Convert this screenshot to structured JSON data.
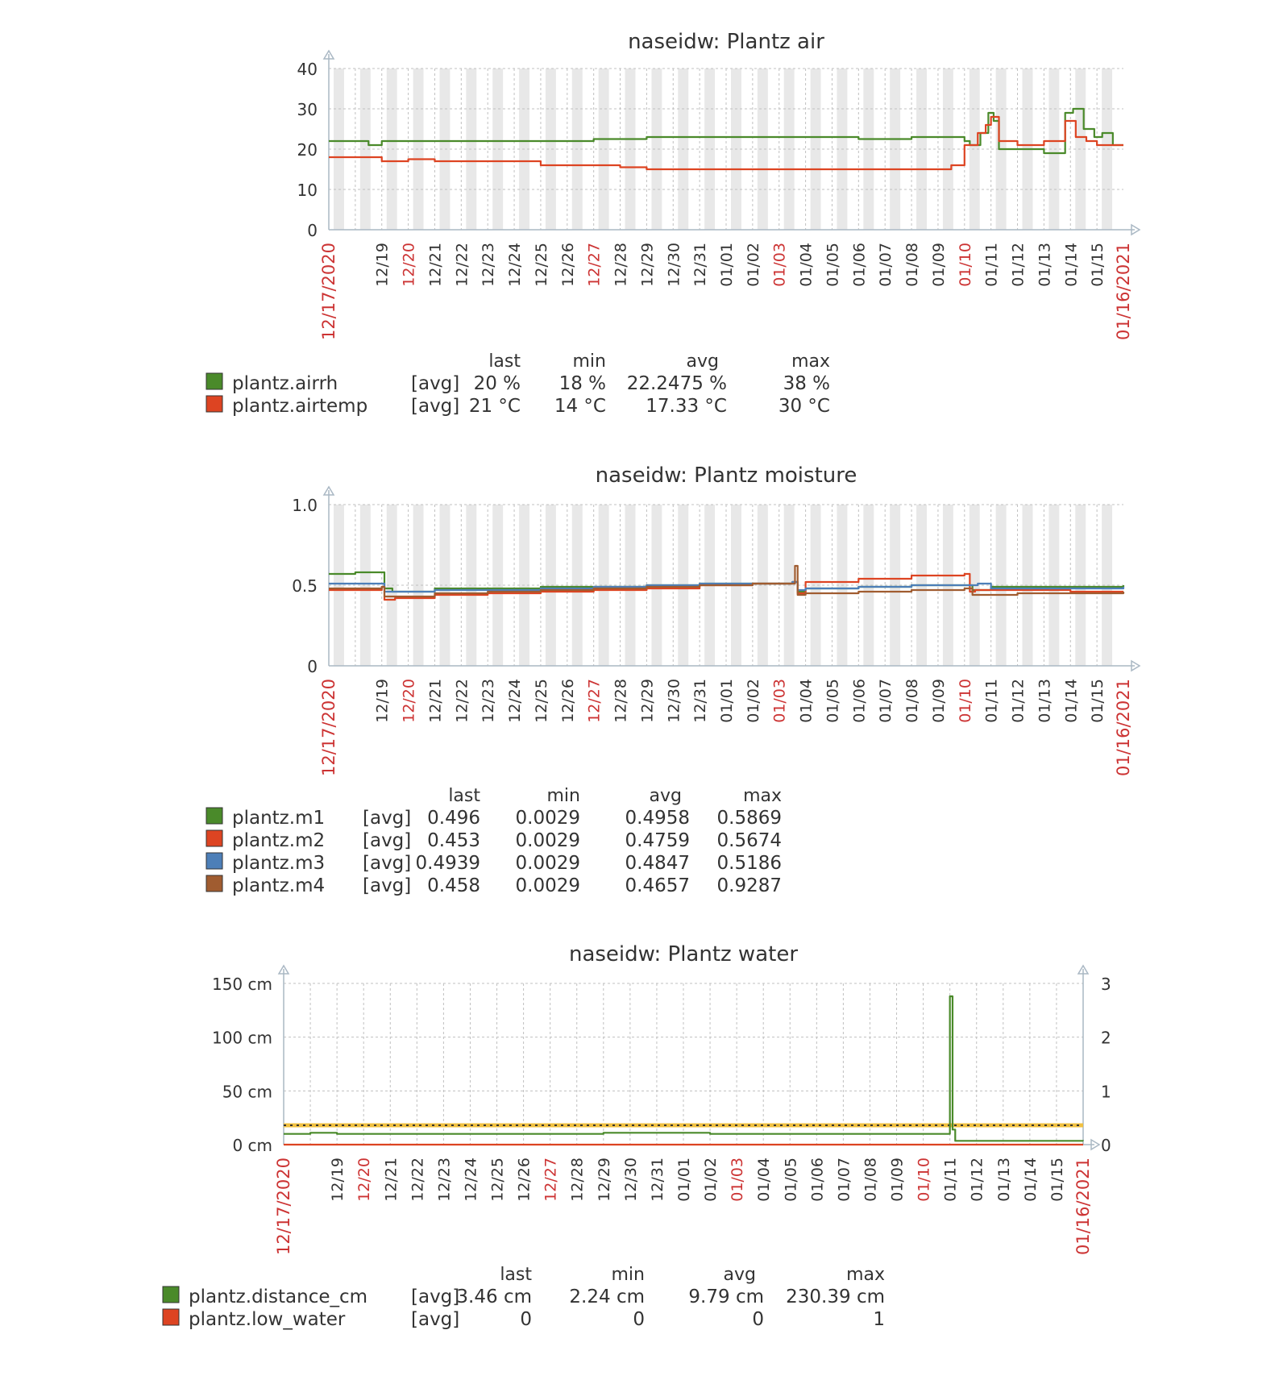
{
  "colors": {
    "green": "#4a8a2a",
    "red": "#dd4422",
    "blue": "#4d7fb8",
    "brown": "#a05c30",
    "yellow_trigger": "#f0c040",
    "weekend_band": "#e8e8e8",
    "axis": "#aab8c4",
    "text": "#333333",
    "red_label": "#cc3333"
  },
  "chart_data": [
    {
      "type": "line",
      "title": "naseidw: Plantz air",
      "x_start": "12/17/2020",
      "x_end": "01/16/2021",
      "x_ticks": [
        "12/19",
        "12/20",
        "12/21",
        "12/22",
        "12/23",
        "12/24",
        "12/25",
        "12/26",
        "12/27",
        "12/28",
        "12/29",
        "12/30",
        "12/31",
        "01/01",
        "01/02",
        "01/03",
        "01/04",
        "01/05",
        "01/06",
        "01/07",
        "01/08",
        "01/09",
        "01/10",
        "01/11",
        "01/12",
        "01/13",
        "01/14",
        "01/15"
      ],
      "red_ticks": [
        "12/20",
        "12/27",
        "01/03",
        "01/10"
      ],
      "y_ticks": [
        "0",
        "10",
        "20",
        "30",
        "40"
      ],
      "ylim": [
        0,
        40
      ],
      "series": [
        {
          "name": "plantz.airrh",
          "color": "green",
          "x": [
            0,
            1,
            1.5,
            2,
            2.5,
            4,
            6,
            8,
            10,
            12,
            14,
            16,
            18,
            20,
            22,
            24,
            24.2,
            24.6,
            24.9,
            25.1,
            25.3,
            26.0,
            27.0,
            27.4,
            27.8,
            28.1,
            28.5,
            28.9,
            29.2,
            29.6,
            30.0
          ],
          "y": [
            22,
            22,
            21,
            22,
            22,
            22,
            22,
            22,
            22.5,
            23,
            23,
            23,
            23,
            22.5,
            23,
            22,
            21,
            24,
            29,
            27,
            20,
            20,
            19,
            19,
            29,
            30,
            25,
            23,
            24,
            21,
            21
          ]
        },
        {
          "name": "plantz.airtemp",
          "color": "red",
          "x": [
            0,
            1,
            1.5,
            2,
            3,
            4,
            6,
            7,
            8,
            9,
            10,
            11,
            12,
            14,
            16,
            18,
            22,
            23,
            23.5,
            24,
            24.5,
            24.8,
            25.0,
            25.3,
            26.0,
            27.0,
            27.4,
            27.8,
            28.2,
            28.6,
            29.0,
            30.0
          ],
          "y": [
            18,
            18,
            18,
            17,
            17.5,
            17,
            17,
            17,
            16,
            16,
            16,
            15.5,
            15,
            15,
            15,
            15,
            15,
            15,
            16,
            21,
            24,
            26,
            28,
            22,
            21,
            22,
            22,
            27,
            23,
            22,
            21,
            21
          ]
        }
      ],
      "legend": {
        "headers": [
          "last",
          "min",
          "avg",
          "max"
        ],
        "rows": [
          {
            "name": "plantz.airrh",
            "func": "[avg]",
            "color": "green",
            "last": "20 %",
            "min": "18 %",
            "avg": "22.2475 %",
            "max": "38 %"
          },
          {
            "name": "plantz.airtemp",
            "func": "[avg]",
            "color": "red",
            "last": "21 °C",
            "min": "14 °C",
            "avg": "17.33 °C",
            "max": "30 °C"
          }
        ]
      }
    },
    {
      "type": "line",
      "title": "naseidw: Plantz moisture",
      "x_start": "12/17/2020",
      "x_end": "01/16/2021",
      "x_ticks": [
        "12/19",
        "12/20",
        "12/21",
        "12/22",
        "12/23",
        "12/24",
        "12/25",
        "12/26",
        "12/27",
        "12/28",
        "12/29",
        "12/30",
        "12/31",
        "01/01",
        "01/02",
        "01/03",
        "01/04",
        "01/05",
        "01/06",
        "01/07",
        "01/08",
        "01/09",
        "01/10",
        "01/11",
        "01/12",
        "01/13",
        "01/14",
        "01/15"
      ],
      "red_ticks": [
        "12/20",
        "12/27",
        "01/03",
        "01/10"
      ],
      "y_ticks": [
        "0",
        "0.5",
        "1.0"
      ],
      "ylim": [
        0,
        1
      ],
      "series": [
        {
          "name": "plantz.m1",
          "color": "green",
          "x": [
            0,
            1,
            2,
            2.1,
            2.4,
            4,
            6,
            8,
            10,
            12,
            14,
            16,
            17.5,
            17.7,
            18,
            20,
            22,
            24,
            24.3,
            25,
            27,
            30
          ],
          "y": [
            0.57,
            0.58,
            0.58,
            0.48,
            0.46,
            0.48,
            0.48,
            0.49,
            0.49,
            0.5,
            0.51,
            0.51,
            0.52,
            0.46,
            0.48,
            0.49,
            0.5,
            0.5,
            0.47,
            0.49,
            0.49,
            0.5
          ]
        },
        {
          "name": "plantz.m2",
          "color": "red",
          "x": [
            0,
            2,
            2.1,
            2.5,
            4,
            6,
            8,
            10,
            12,
            14,
            16,
            17.5,
            17.7,
            18,
            20,
            22,
            24,
            24.2,
            24.4,
            26,
            28,
            30
          ],
          "y": [
            0.47,
            0.49,
            0.41,
            0.42,
            0.44,
            0.45,
            0.46,
            0.47,
            0.48,
            0.5,
            0.51,
            0.52,
            0.45,
            0.52,
            0.54,
            0.56,
            0.57,
            0.46,
            0.47,
            0.47,
            0.46,
            0.46
          ]
        },
        {
          "name": "plantz.m3",
          "color": "blue",
          "x": [
            0,
            2,
            2.1,
            4,
            6,
            8,
            10,
            12,
            14,
            16,
            17.5,
            17.7,
            18,
            20,
            22,
            24,
            24.5,
            25,
            27,
            30
          ],
          "y": [
            0.51,
            0.51,
            0.46,
            0.47,
            0.47,
            0.48,
            0.49,
            0.5,
            0.51,
            0.51,
            0.52,
            0.47,
            0.48,
            0.49,
            0.5,
            0.5,
            0.51,
            0.48,
            0.48,
            0.49
          ]
        },
        {
          "name": "plantz.m4",
          "color": "brown",
          "x": [
            0,
            2,
            2.1,
            4,
            6,
            8,
            10,
            12,
            14,
            16,
            17.5,
            17.6,
            17.7,
            18,
            20,
            22,
            24,
            24.3,
            26,
            28,
            30
          ],
          "y": [
            0.48,
            0.49,
            0.43,
            0.45,
            0.46,
            0.47,
            0.48,
            0.49,
            0.5,
            0.51,
            0.51,
            0.62,
            0.44,
            0.45,
            0.46,
            0.47,
            0.48,
            0.44,
            0.45,
            0.45,
            0.46
          ]
        }
      ],
      "legend": {
        "headers": [
          "last",
          "min",
          "avg",
          "max"
        ],
        "rows": [
          {
            "name": "plantz.m1",
            "func": "[avg]",
            "color": "green",
            "last": "0.496",
            "min": "0.0029",
            "avg": "0.4958",
            "max": "0.5869"
          },
          {
            "name": "plantz.m2",
            "func": "[avg]",
            "color": "red",
            "last": "0.453",
            "min": "0.0029",
            "avg": "0.4759",
            "max": "0.5674"
          },
          {
            "name": "plantz.m3",
            "func": "[avg]",
            "color": "blue",
            "last": "0.4939",
            "min": "0.0029",
            "avg": "0.4847",
            "max": "0.5186"
          },
          {
            "name": "plantz.m4",
            "func": "[avg]",
            "color": "brown",
            "last": "0.458",
            "min": "0.0029",
            "avg": "0.4657",
            "max": "0.9287"
          }
        ]
      }
    },
    {
      "type": "line",
      "title": "naseidw: Plantz water",
      "x_start": "12/17/2020",
      "x_end": "01/16/2021",
      "x_ticks": [
        "12/19",
        "12/20",
        "12/21",
        "12/22",
        "12/23",
        "12/24",
        "12/25",
        "12/26",
        "12/27",
        "12/28",
        "12/29",
        "12/30",
        "12/31",
        "01/01",
        "01/02",
        "01/03",
        "01/04",
        "01/05",
        "01/06",
        "01/07",
        "01/08",
        "01/09",
        "01/10",
        "01/11",
        "01/12",
        "01/13",
        "01/14",
        "01/15"
      ],
      "red_ticks": [
        "12/20",
        "12/27",
        "01/03",
        "01/10"
      ],
      "y_ticks": [
        "0 cm",
        "50 cm",
        "100 cm",
        "150 cm"
      ],
      "ylim": [
        0,
        150
      ],
      "y2_ticks": [
        "0",
        "1",
        "2",
        "3"
      ],
      "y2lim": [
        0,
        3
      ],
      "trigger_value": 18,
      "series": [
        {
          "name": "plantz.distance_cm",
          "color": "green",
          "x": [
            0,
            1,
            2,
            4,
            6,
            8,
            10,
            12,
            14,
            16,
            18,
            20,
            22,
            24,
            24.9,
            25.0,
            25.1,
            25.2,
            30
          ],
          "y": [
            10,
            11,
            10,
            10,
            10,
            10,
            10,
            11,
            11,
            10,
            10,
            10,
            10,
            10,
            10,
            138,
            14,
            3.5,
            3.46
          ]
        },
        {
          "name": "plantz.low_water",
          "color": "red",
          "axis": "right",
          "x": [
            0,
            30
          ],
          "y": [
            0,
            0
          ]
        }
      ],
      "legend": {
        "headers": [
          "last",
          "min",
          "avg",
          "max"
        ],
        "rows": [
          {
            "name": "plantz.distance_cm",
            "func": "[avg]",
            "color": "green",
            "last": "3.46 cm",
            "min": "2.24 cm",
            "avg": "9.79 cm",
            "max": "230.39 cm"
          },
          {
            "name": "plantz.low_water",
            "func": "[avg]",
            "color": "red",
            "last": "0",
            "min": "0",
            "avg": "0",
            "max": "1"
          }
        ]
      }
    }
  ]
}
